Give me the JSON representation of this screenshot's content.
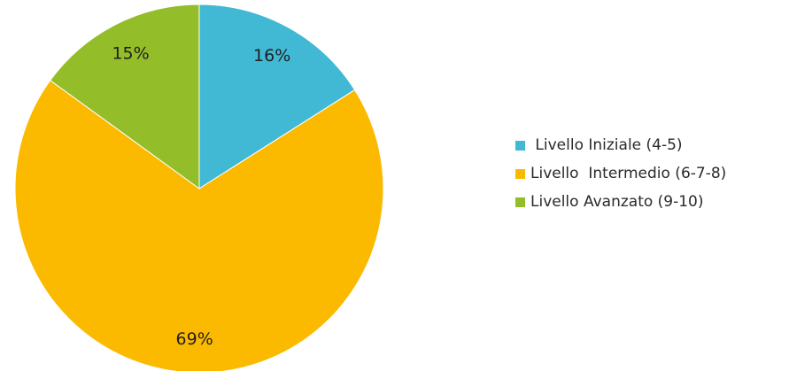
{
  "chart_data": {
    "type": "pie",
    "title": "",
    "categories": [
      " Livello Iniziale (4-5)",
      "Livello  Intermedio (6-7-8)",
      "Livello Avanzato (9-10)"
    ],
    "values": [
      16,
      69,
      15
    ],
    "labels": [
      "16%",
      "69%",
      "15%"
    ],
    "colors": [
      "#41b9d4",
      "#fbb900",
      "#94bd2a"
    ],
    "legend_position": "right"
  }
}
